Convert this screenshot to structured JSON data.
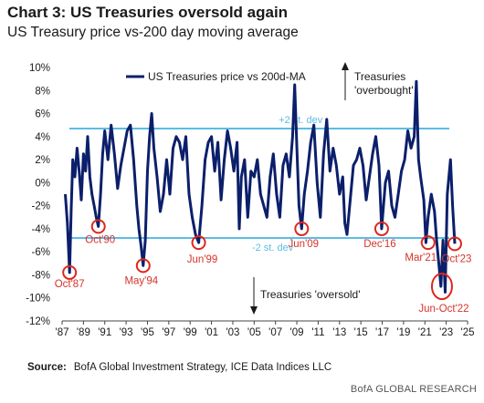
{
  "chart_data": {
    "type": "line",
    "title": "Chart 3: US Treasuries oversold again",
    "subtitle": "US Treasury price vs-200 day moving average",
    "legend": "US Treasuries price vs 200d-MA",
    "legend_position": "top-center",
    "y_ticks": [
      "10%",
      "8%",
      "6%",
      "4%",
      "2%",
      "0%",
      "-2%",
      "-4%",
      "-6%",
      "-8%",
      "-10%",
      "-12%"
    ],
    "x_ticks": [
      "'87",
      "'89",
      "'91",
      "'93",
      "'95",
      "'97",
      "'99",
      "'01",
      "'03",
      "'05",
      "'07",
      "'09",
      "'11",
      "'13",
      "'15",
      "'17",
      "'19",
      "'21",
      "'23",
      "'25"
    ],
    "xlim": [
      1987,
      2025
    ],
    "ylim": [
      -12,
      10
    ],
    "grid": false,
    "bands": [
      {
        "label": "+2 st. dev",
        "value": 4.7
      },
      {
        "label": "-2 st. dev",
        "value": -4.8
      }
    ],
    "series": [
      {
        "name": "US Treasuries price vs 200d-MA",
        "x": [
          1987.3,
          1987.5,
          1987.7,
          1987.85,
          1988.0,
          1988.2,
          1988.4,
          1988.6,
          1988.8,
          1989.0,
          1989.2,
          1989.4,
          1989.6,
          1989.8,
          1990.0,
          1990.2,
          1990.4,
          1990.6,
          1990.8,
          1991.0,
          1991.3,
          1991.6,
          1991.9,
          1992.2,
          1992.5,
          1992.8,
          1993.1,
          1993.4,
          1993.7,
          1994.0,
          1994.2,
          1994.4,
          1994.6,
          1994.8,
          1995.0,
          1995.2,
          1995.4,
          1995.6,
          1995.9,
          1996.2,
          1996.5,
          1996.8,
          1997.1,
          1997.4,
          1997.7,
          1998.0,
          1998.3,
          1998.6,
          1998.9,
          1999.2,
          1999.5,
          1999.8,
          2000.1,
          2000.4,
          2000.7,
          2001.0,
          2001.3,
          2001.6,
          2001.9,
          2002.2,
          2002.5,
          2002.8,
          2003.1,
          2003.4,
          2003.6,
          2003.8,
          2004.1,
          2004.4,
          2004.7,
          2005.0,
          2005.3,
          2005.6,
          2005.9,
          2006.2,
          2006.5,
          2006.8,
          2007.1,
          2007.4,
          2007.7,
          2008.0,
          2008.3,
          2008.6,
          2008.8,
          2009.0,
          2009.2,
          2009.45,
          2009.7,
          2010.0,
          2010.3,
          2010.6,
          2010.9,
          2011.2,
          2011.5,
          2011.8,
          2012.1,
          2012.4,
          2012.7,
          2013.0,
          2013.3,
          2013.5,
          2013.7,
          2014.0,
          2014.3,
          2014.6,
          2014.9,
          2015.2,
          2015.5,
          2015.8,
          2016.1,
          2016.4,
          2016.7,
          2016.95,
          2017.3,
          2017.6,
          2017.9,
          2018.2,
          2018.5,
          2018.8,
          2019.1,
          2019.4,
          2019.7,
          2020.0,
          2020.2,
          2020.4,
          2020.6,
          2020.9,
          2021.1,
          2021.3,
          2021.6,
          2021.9,
          2022.1,
          2022.3,
          2022.5,
          2022.7,
          2022.9,
          2023.1,
          2023.4,
          2023.6,
          2023.8
        ],
        "values": [
          -1.0,
          -3.5,
          -7.8,
          -2.5,
          2.0,
          0.5,
          3.0,
          1.0,
          -1.5,
          2.5,
          1.0,
          4.0,
          0.5,
          -1.0,
          -2.0,
          -3.0,
          -3.8,
          -1.0,
          2.5,
          4.5,
          2.0,
          5.0,
          2.5,
          -0.5,
          1.5,
          3.0,
          4.5,
          5.0,
          2.0,
          -2.0,
          -4.0,
          -5.5,
          -7.2,
          -5.0,
          1.0,
          4.0,
          6.0,
          3.0,
          0.5,
          -2.5,
          -1.0,
          2.0,
          -1.0,
          3.0,
          4.0,
          3.5,
          2.0,
          4.0,
          -1.0,
          -3.0,
          -4.5,
          -5.2,
          -2.0,
          2.0,
          3.5,
          4.0,
          1.0,
          3.5,
          -1.5,
          2.0,
          4.5,
          3.0,
          1.0,
          3.5,
          -4.0,
          0.5,
          2.0,
          -3.0,
          1.0,
          0.5,
          2.0,
          -1.0,
          -2.0,
          -3.0,
          0.5,
          2.5,
          -1.0,
          -3.0,
          1.5,
          2.5,
          0.5,
          4.0,
          8.5,
          3.0,
          -2.0,
          -4.0,
          -1.0,
          1.0,
          3.5,
          5.0,
          0.0,
          -3.0,
          2.5,
          5.5,
          1.0,
          3.0,
          1.5,
          -1.0,
          0.5,
          -3.5,
          -4.5,
          -1.5,
          1.5,
          2.0,
          3.0,
          1.5,
          -1.5,
          0.5,
          2.5,
          4.0,
          1.5,
          -4.0,
          0.0,
          1.0,
          -2.0,
          -3.0,
          -1.0,
          1.0,
          2.0,
          4.5,
          3.0,
          4.0,
          8.8,
          2.0,
          0.5,
          -1.5,
          -5.2,
          -3.0,
          -1.0,
          -2.5,
          -5.0,
          -7.0,
          -9.0,
          -5.0,
          -9.5,
          -1.0,
          2.0,
          -2.0,
          -5.3
        ]
      }
    ],
    "annotations": [
      {
        "text": "Oct'87",
        "x": 1987.7,
        "y": -7.8,
        "label_dx": 0,
        "label_dy": 16
      },
      {
        "text": "Oct'90",
        "x": 1990.4,
        "y": -3.8,
        "label_dx": 2,
        "label_dy": 18
      },
      {
        "text": "May'94",
        "x": 1994.6,
        "y": -7.2,
        "label_dx": -2,
        "label_dy": 20
      },
      {
        "text": "Jun'99",
        "x": 1999.8,
        "y": -5.2,
        "label_dx": 4,
        "label_dy": 22
      },
      {
        "text": "Jun'09",
        "x": 2009.45,
        "y": -4.0,
        "label_dx": 2,
        "label_dy": 20
      },
      {
        "text": "Dec'16",
        "x": 2016.95,
        "y": -4.0,
        "label_dx": -2,
        "label_dy": 20
      },
      {
        "text": "Mar'21",
        "x": 2021.3,
        "y": -5.2,
        "label_dx": -8,
        "label_dy": 20
      },
      {
        "text": "Jun-Oct'22",
        "x": 2022.6,
        "y": -9.0,
        "label_dx": 2,
        "label_dy": 28
      },
      {
        "text": "Oct'23",
        "x": 2023.8,
        "y": -5.3,
        "label_dx": 2,
        "label_dy": 20
      }
    ],
    "overbought_label": [
      "Treasuries",
      "'overbought'"
    ],
    "oversold_label": "Treasuries 'oversold'",
    "colors": {
      "series": "#0b1f6b",
      "band": "#5bbde6",
      "marker": "#e0261b",
      "marker_text": "#d6332a"
    }
  },
  "footer": {
    "source_label": "Source:",
    "source_text": "BofA Global Investment Strategy, ICE Data Indices LLC",
    "brand": "BofA GLOBAL RESEARCH"
  }
}
